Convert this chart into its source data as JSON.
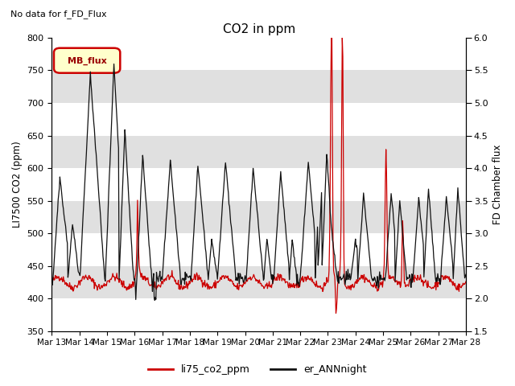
{
  "title": "CO2 in ppm",
  "top_left_note": "No data for f_FD_Flux",
  "ylabel_left": "LI7500 CO2 (ppm)",
  "ylabel_right": "FD Chamber flux",
  "ylim_left": [
    350,
    800
  ],
  "ylim_right": [
    1.5,
    6.0
  ],
  "yticks_left": [
    350,
    400,
    450,
    500,
    550,
    600,
    650,
    700,
    750,
    800
  ],
  "yticks_right": [
    1.5,
    2.0,
    2.5,
    3.0,
    3.5,
    4.0,
    4.5,
    5.0,
    5.5,
    6.0
  ],
  "date_labels": [
    "Mar 13",
    "Mar 14",
    "Mar 15",
    "Mar 16",
    "Mar 17",
    "Mar 18",
    "Mar 19",
    "Mar 20",
    "Mar 21",
    "Mar 22",
    "Mar 23",
    "Mar 24",
    "Mar 25",
    "Mar 26",
    "Mar 27",
    "Mar 28"
  ],
  "legend_red": "li75_co2_ppm",
  "legend_black": "er_ANNnight",
  "legend_box_label": "MB_flux",
  "line_red_color": "#cc0000",
  "line_black_color": "#111111",
  "background_color": "#ffffff",
  "band_color": "#e0e0e0",
  "legend_box_fill": "#ffffcc",
  "legend_box_edge": "#cc0000"
}
